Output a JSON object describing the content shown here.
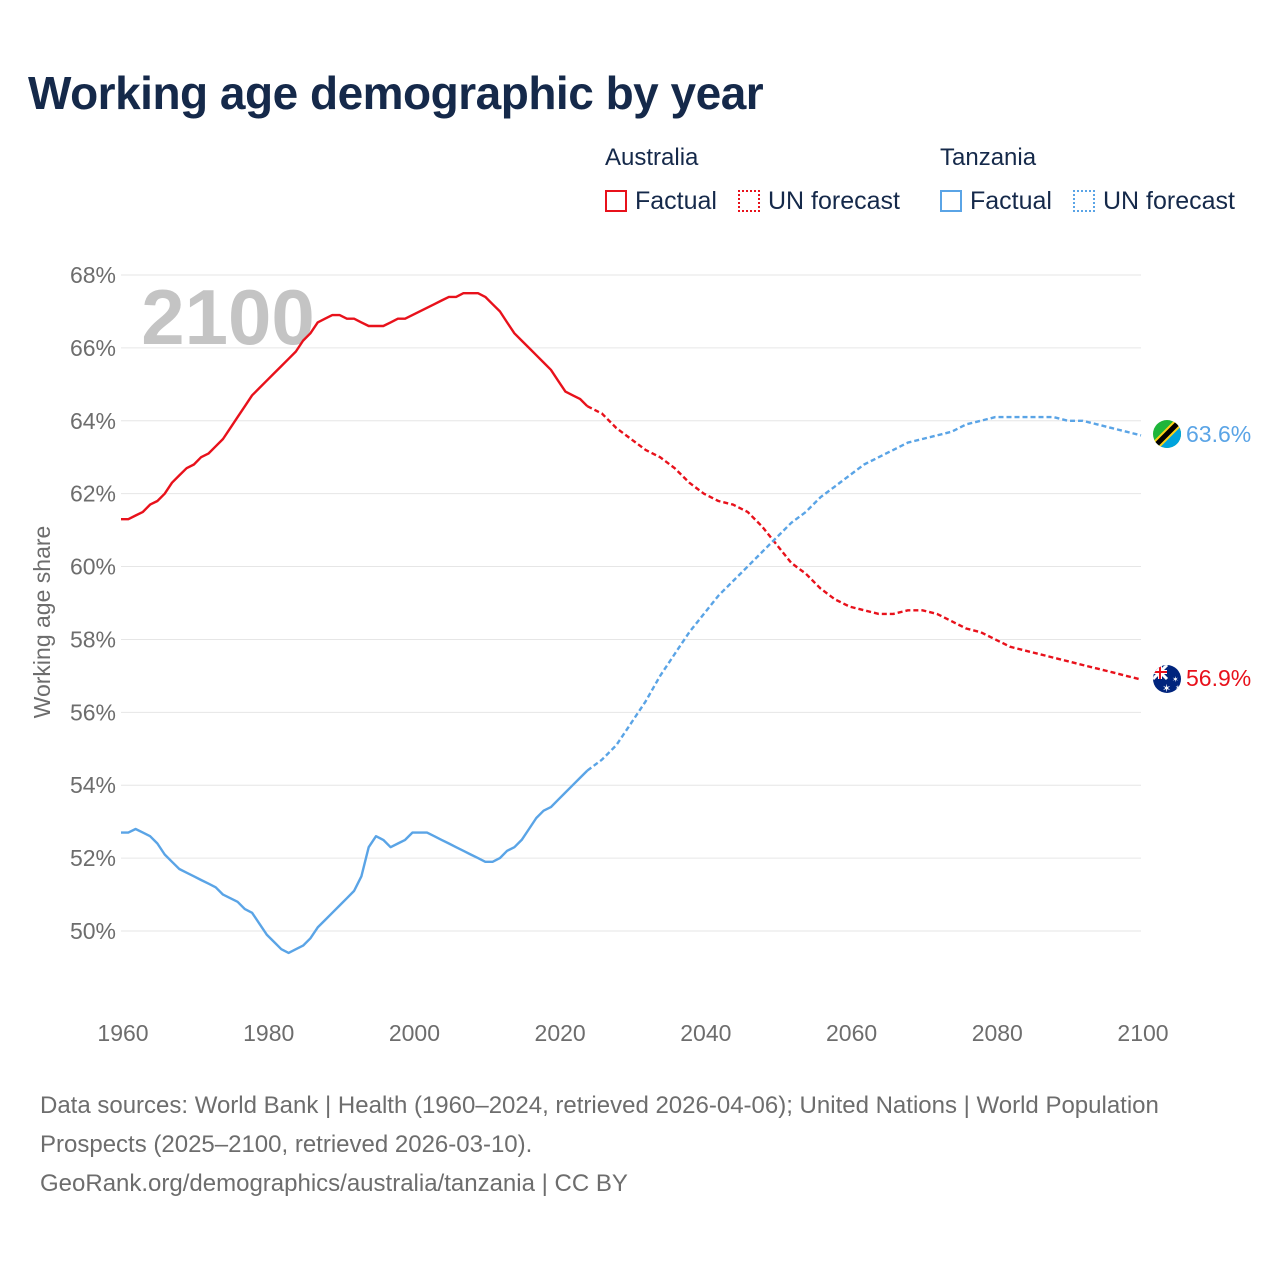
{
  "title": "Working age demographic by year",
  "legend": {
    "groups": [
      {
        "name": "Australia",
        "color": "#e8111b",
        "factual_label": "Factual",
        "forecast_label": "UN forecast"
      },
      {
        "name": "Tanzania",
        "color": "#5aa4e6",
        "factual_label": "Factual",
        "forecast_label": "UN forecast"
      }
    ]
  },
  "chart_data": {
    "type": "line",
    "title": "Working age demographic by year",
    "xlabel": "",
    "ylabel": "Working age share",
    "xlim": [
      1960,
      2100
    ],
    "ylim": [
      48,
      68
    ],
    "x_ticks": [
      1960,
      1980,
      2000,
      2020,
      2040,
      2060,
      2080,
      2100
    ],
    "y_ticks": [
      50,
      52,
      54,
      56,
      58,
      60,
      62,
      64,
      66,
      68
    ],
    "y_tick_suffix": "%",
    "watermark_year": "2100",
    "factual_until": 2024,
    "grid": true,
    "series": [
      {
        "name": "Australia",
        "color": "#e8111b",
        "end_label": "56.9%",
        "flag": "australia-flag",
        "points": [
          [
            1960,
            61.3
          ],
          [
            1961,
            61.3
          ],
          [
            1962,
            61.4
          ],
          [
            1963,
            61.5
          ],
          [
            1964,
            61.7
          ],
          [
            1965,
            61.8
          ],
          [
            1966,
            62.0
          ],
          [
            1967,
            62.3
          ],
          [
            1968,
            62.5
          ],
          [
            1969,
            62.7
          ],
          [
            1970,
            62.8
          ],
          [
            1971,
            63.0
          ],
          [
            1972,
            63.1
          ],
          [
            1973,
            63.3
          ],
          [
            1974,
            63.5
          ],
          [
            1975,
            63.8
          ],
          [
            1976,
            64.1
          ],
          [
            1977,
            64.4
          ],
          [
            1978,
            64.7
          ],
          [
            1979,
            64.9
          ],
          [
            1980,
            65.1
          ],
          [
            1981,
            65.3
          ],
          [
            1982,
            65.5
          ],
          [
            1983,
            65.7
          ],
          [
            1984,
            65.9
          ],
          [
            1985,
            66.2
          ],
          [
            1986,
            66.4
          ],
          [
            1987,
            66.7
          ],
          [
            1988,
            66.8
          ],
          [
            1989,
            66.9
          ],
          [
            1990,
            66.9
          ],
          [
            1991,
            66.8
          ],
          [
            1992,
            66.8
          ],
          [
            1993,
            66.7
          ],
          [
            1994,
            66.6
          ],
          [
            1995,
            66.6
          ],
          [
            1996,
            66.6
          ],
          [
            1997,
            66.7
          ],
          [
            1998,
            66.8
          ],
          [
            1999,
            66.8
          ],
          [
            2000,
            66.9
          ],
          [
            2001,
            67.0
          ],
          [
            2002,
            67.1
          ],
          [
            2003,
            67.2
          ],
          [
            2004,
            67.3
          ],
          [
            2005,
            67.4
          ],
          [
            2006,
            67.4
          ],
          [
            2007,
            67.5
          ],
          [
            2008,
            67.5
          ],
          [
            2009,
            67.5
          ],
          [
            2010,
            67.4
          ],
          [
            2011,
            67.2
          ],
          [
            2012,
            67.0
          ],
          [
            2013,
            66.7
          ],
          [
            2014,
            66.4
          ],
          [
            2015,
            66.2
          ],
          [
            2016,
            66.0
          ],
          [
            2017,
            65.8
          ],
          [
            2018,
            65.6
          ],
          [
            2019,
            65.4
          ],
          [
            2020,
            65.1
          ],
          [
            2021,
            64.8
          ],
          [
            2022,
            64.7
          ],
          [
            2023,
            64.6
          ],
          [
            2024,
            64.4
          ],
          [
            2026,
            64.2
          ],
          [
            2028,
            63.8
          ],
          [
            2030,
            63.5
          ],
          [
            2032,
            63.2
          ],
          [
            2034,
            63.0
          ],
          [
            2036,
            62.7
          ],
          [
            2038,
            62.3
          ],
          [
            2040,
            62.0
          ],
          [
            2042,
            61.8
          ],
          [
            2044,
            61.7
          ],
          [
            2046,
            61.5
          ],
          [
            2048,
            61.1
          ],
          [
            2050,
            60.6
          ],
          [
            2052,
            60.1
          ],
          [
            2054,
            59.8
          ],
          [
            2056,
            59.4
          ],
          [
            2058,
            59.1
          ],
          [
            2060,
            58.9
          ],
          [
            2062,
            58.8
          ],
          [
            2064,
            58.7
          ],
          [
            2066,
            58.7
          ],
          [
            2068,
            58.8
          ],
          [
            2070,
            58.8
          ],
          [
            2072,
            58.7
          ],
          [
            2074,
            58.5
          ],
          [
            2076,
            58.3
          ],
          [
            2078,
            58.2
          ],
          [
            2080,
            58.0
          ],
          [
            2082,
            57.8
          ],
          [
            2084,
            57.7
          ],
          [
            2086,
            57.6
          ],
          [
            2088,
            57.5
          ],
          [
            2090,
            57.4
          ],
          [
            2092,
            57.3
          ],
          [
            2094,
            57.2
          ],
          [
            2096,
            57.1
          ],
          [
            2098,
            57.0
          ],
          [
            2100,
            56.9
          ]
        ]
      },
      {
        "name": "Tanzania",
        "color": "#5aa4e6",
        "end_label": "63.6%",
        "flag": "tanzania-flag",
        "points": [
          [
            1960,
            52.7
          ],
          [
            1961,
            52.7
          ],
          [
            1962,
            52.8
          ],
          [
            1963,
            52.7
          ],
          [
            1964,
            52.6
          ],
          [
            1965,
            52.4
          ],
          [
            1966,
            52.1
          ],
          [
            1967,
            51.9
          ],
          [
            1968,
            51.7
          ],
          [
            1969,
            51.6
          ],
          [
            1970,
            51.5
          ],
          [
            1971,
            51.4
          ],
          [
            1972,
            51.3
          ],
          [
            1973,
            51.2
          ],
          [
            1974,
            51.0
          ],
          [
            1975,
            50.9
          ],
          [
            1976,
            50.8
          ],
          [
            1977,
            50.6
          ],
          [
            1978,
            50.5
          ],
          [
            1979,
            50.2
          ],
          [
            1980,
            49.9
          ],
          [
            1981,
            49.7
          ],
          [
            1982,
            49.5
          ],
          [
            1983,
            49.4
          ],
          [
            1984,
            49.5
          ],
          [
            1985,
            49.6
          ],
          [
            1986,
            49.8
          ],
          [
            1987,
            50.1
          ],
          [
            1988,
            50.3
          ],
          [
            1989,
            50.5
          ],
          [
            1990,
            50.7
          ],
          [
            1991,
            50.9
          ],
          [
            1992,
            51.1
          ],
          [
            1993,
            51.5
          ],
          [
            1994,
            52.3
          ],
          [
            1995,
            52.6
          ],
          [
            1996,
            52.5
          ],
          [
            1997,
            52.3
          ],
          [
            1998,
            52.4
          ],
          [
            1999,
            52.5
          ],
          [
            2000,
            52.7
          ],
          [
            2001,
            52.7
          ],
          [
            2002,
            52.7
          ],
          [
            2003,
            52.6
          ],
          [
            2004,
            52.5
          ],
          [
            2005,
            52.4
          ],
          [
            2006,
            52.3
          ],
          [
            2007,
            52.2
          ],
          [
            2008,
            52.1
          ],
          [
            2009,
            52.0
          ],
          [
            2010,
            51.9
          ],
          [
            2011,
            51.9
          ],
          [
            2012,
            52.0
          ],
          [
            2013,
            52.2
          ],
          [
            2014,
            52.3
          ],
          [
            2015,
            52.5
          ],
          [
            2016,
            52.8
          ],
          [
            2017,
            53.1
          ],
          [
            2018,
            53.3
          ],
          [
            2019,
            53.4
          ],
          [
            2020,
            53.6
          ],
          [
            2021,
            53.8
          ],
          [
            2022,
            54.0
          ],
          [
            2023,
            54.2
          ],
          [
            2024,
            54.4
          ],
          [
            2026,
            54.7
          ],
          [
            2028,
            55.1
          ],
          [
            2030,
            55.7
          ],
          [
            2032,
            56.3
          ],
          [
            2034,
            57.0
          ],
          [
            2036,
            57.6
          ],
          [
            2038,
            58.2
          ],
          [
            2040,
            58.7
          ],
          [
            2042,
            59.2
          ],
          [
            2044,
            59.6
          ],
          [
            2046,
            60.0
          ],
          [
            2048,
            60.4
          ],
          [
            2050,
            60.8
          ],
          [
            2052,
            61.2
          ],
          [
            2054,
            61.5
          ],
          [
            2056,
            61.9
          ],
          [
            2058,
            62.2
          ],
          [
            2060,
            62.5
          ],
          [
            2062,
            62.8
          ],
          [
            2064,
            63.0
          ],
          [
            2066,
            63.2
          ],
          [
            2068,
            63.4
          ],
          [
            2070,
            63.5
          ],
          [
            2072,
            63.6
          ],
          [
            2074,
            63.7
          ],
          [
            2076,
            63.9
          ],
          [
            2078,
            64.0
          ],
          [
            2080,
            64.1
          ],
          [
            2082,
            64.1
          ],
          [
            2084,
            64.1
          ],
          [
            2086,
            64.1
          ],
          [
            2088,
            64.1
          ],
          [
            2090,
            64.0
          ],
          [
            2092,
            64.0
          ],
          [
            2094,
            63.9
          ],
          [
            2096,
            63.8
          ],
          [
            2098,
            63.7
          ],
          [
            2100,
            63.6
          ]
        ]
      }
    ]
  },
  "footer": {
    "sources_line": "Data sources: World Bank | Health (1960–2024, retrieved 2026-04-06); United Nations | World Population Prospects (2025–2100, retrieved 2026-03-10).",
    "attribution": "GeoRank.org/demographics/australia/tanzania | CC BY"
  }
}
